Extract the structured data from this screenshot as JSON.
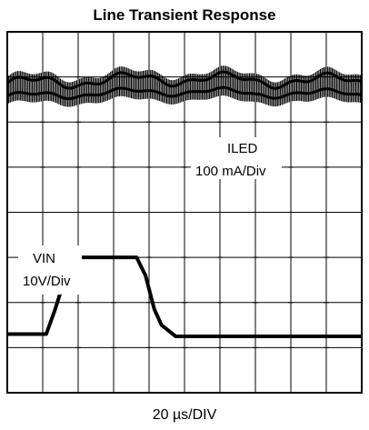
{
  "title": "Line Transient Response",
  "chart_data": {
    "type": "line",
    "title": "Line Transient Response",
    "xlabel": "20 µs/DIV",
    "grid": true,
    "divisions": {
      "x": 10,
      "y": 8
    },
    "xlim": [
      0,
      200
    ],
    "x_unit": "µs",
    "series": [
      {
        "name": "ILED",
        "scale": "100 mA/Div",
        "kind": "ripple band",
        "center_div": 6.7,
        "ripple_pp_div": 0.6,
        "envelope": {
          "x_us": [
            0,
            30,
            55,
            85,
            110,
            140,
            165,
            200
          ],
          "center_div": [
            6.7,
            6.7,
            6.8,
            6.75,
            6.85,
            6.7,
            6.8,
            6.7
          ]
        }
      },
      {
        "name": "VIN",
        "scale": "10V/Div",
        "kind": "step",
        "x_us": [
          0,
          22,
          27,
          33,
          38,
          73,
          78,
          83,
          87,
          95,
          200
        ],
        "y_div": [
          1.3,
          1.3,
          1.85,
          2.6,
          3.0,
          3.0,
          2.6,
          1.85,
          1.5,
          1.25,
          1.25
        ]
      }
    ],
    "labels": {
      "iled_name": "ILED",
      "iled_scale": "100 mA/Div",
      "vin_name": "VIN",
      "vin_scale": "10V/Div"
    }
  }
}
